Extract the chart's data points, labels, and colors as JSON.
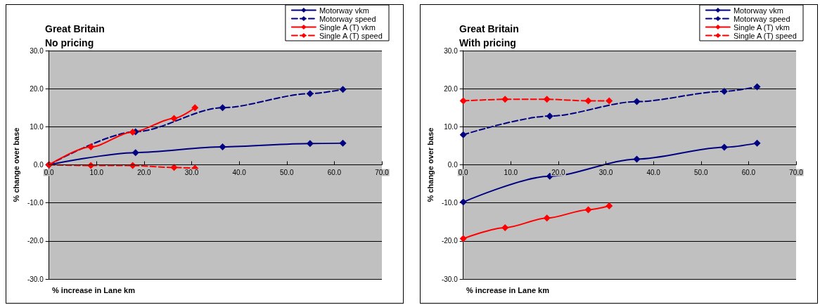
{
  "chart_data": [
    {
      "type": "line",
      "title": "Great Britain",
      "subtitle": "No pricing",
      "xlabel": "% increase in Lane km",
      "ylabel": "% change over base",
      "xlim": [
        0,
        70
      ],
      "xticks": [
        {
          "value": 0,
          "label": "0.0"
        },
        {
          "value": 10,
          "label": "10.0"
        },
        {
          "value": 20,
          "label": "20.0"
        },
        {
          "value": 30,
          "label": "30.0"
        },
        {
          "value": 40,
          "label": "40.0"
        },
        {
          "value": 50,
          "label": "50.0"
        },
        {
          "value": 60,
          "label": "60.0"
        },
        {
          "value": 70,
          "label": "70.0"
        }
      ],
      "ylim": [
        -30,
        30
      ],
      "yticks": [
        {
          "value": -30,
          "label": "-30.0"
        },
        {
          "value": -20,
          "label": "-20.0"
        },
        {
          "value": -10,
          "label": "-10.0"
        },
        {
          "value": 0,
          "label": "0.0"
        },
        {
          "value": 10,
          "label": "10.0"
        },
        {
          "value": 20,
          "label": "20.0"
        },
        {
          "value": 30,
          "label": "30.0"
        }
      ],
      "grid": "y",
      "legend": "top right",
      "marker": "diamond",
      "series": [
        {
          "name": "Motorway vkm",
          "color": "#000080",
          "line_style": "solid",
          "x": [
            0,
            18.2,
            36.5,
            54.9,
            61.8
          ],
          "values": [
            0,
            3.2,
            4.7,
            5.6,
            5.7
          ]
        },
        {
          "name": "Motorway speed",
          "color": "#000080",
          "line_style": "dashed",
          "x": [
            0,
            18.2,
            36.5,
            54.9,
            61.8
          ],
          "values": [
            0,
            8.7,
            15.0,
            18.7,
            19.8
          ]
        },
        {
          "name": "Single A (T) vkm",
          "color": "#ff0000",
          "line_style": "solid",
          "x": [
            0,
            8.8,
            17.6,
            26.3,
            30.7
          ],
          "values": [
            0,
            4.7,
            8.6,
            12.2,
            15.0
          ]
        },
        {
          "name": "Single A (T) speed",
          "color": "#ff0000",
          "line_style": "dashed",
          "x": [
            0,
            8.8,
            17.6,
            26.3,
            30.7
          ],
          "values": [
            0,
            -0.2,
            -0.2,
            -0.7,
            -0.9
          ]
        }
      ]
    },
    {
      "type": "line",
      "title": "Great Britain",
      "subtitle": "With pricing",
      "xlabel": "% increase in Lane km",
      "ylabel": "% change over base",
      "xlim": [
        0,
        70
      ],
      "xticks": [
        {
          "value": 0,
          "label": "0.0"
        },
        {
          "value": 10,
          "label": "10.0"
        },
        {
          "value": 20,
          "label": "20.0"
        },
        {
          "value": 30,
          "label": "30.0"
        },
        {
          "value": 40,
          "label": "40.0"
        },
        {
          "value": 50,
          "label": "50.0"
        },
        {
          "value": 60,
          "label": "60.0"
        },
        {
          "value": 70,
          "label": "70.0"
        }
      ],
      "ylim": [
        -30,
        30
      ],
      "yticks": [
        {
          "value": -30,
          "label": "-30.0"
        },
        {
          "value": -20,
          "label": "-20.0"
        },
        {
          "value": -10,
          "label": "-10.0"
        },
        {
          "value": 0,
          "label": "0.0"
        },
        {
          "value": 10,
          "label": "10.0"
        },
        {
          "value": 20,
          "label": "20.0"
        },
        {
          "value": 30,
          "label": "30.0"
        }
      ],
      "grid": "y",
      "legend": "top right",
      "marker": "diamond",
      "series": [
        {
          "name": "Motorway vkm",
          "color": "#000080",
          "line_style": "solid",
          "x": [
            0,
            18.2,
            36.5,
            54.9,
            61.8
          ],
          "values": [
            -9.8,
            -3.0,
            1.5,
            4.6,
            5.7
          ]
        },
        {
          "name": "Motorway speed",
          "color": "#000080",
          "line_style": "dashed",
          "x": [
            0,
            18.2,
            36.5,
            54.9,
            61.8
          ],
          "values": [
            7.9,
            12.8,
            16.6,
            19.3,
            20.5
          ]
        },
        {
          "name": "Single A (T) vkm",
          "color": "#ff0000",
          "line_style": "solid",
          "x": [
            0,
            8.8,
            17.6,
            26.3,
            30.7
          ],
          "values": [
            -19.4,
            -16.5,
            -14.0,
            -11.8,
            -10.8
          ]
        },
        {
          "name": "Single A (T) speed",
          "color": "#ff0000",
          "line_style": "dashed",
          "x": [
            0,
            8.8,
            17.6,
            26.3,
            30.7
          ],
          "values": [
            16.8,
            17.2,
            17.2,
            16.8,
            16.8
          ]
        }
      ]
    }
  ]
}
